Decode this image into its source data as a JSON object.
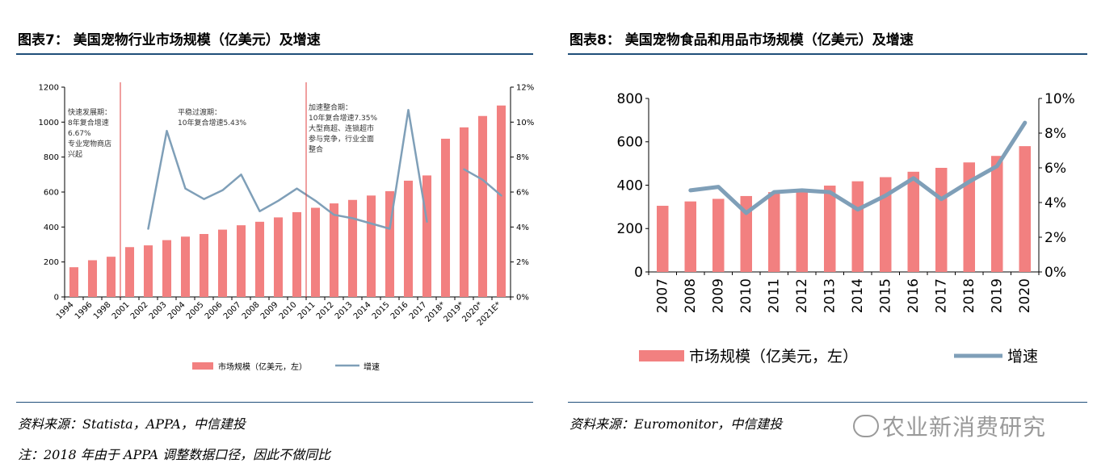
{
  "left": {
    "title": "图表7： 美国宠物行业市场规模（亿美元）及增速",
    "source": "资料来源：Statista，APPA，中信建投",
    "note": "注：2018 年由于 APPA 调整数据口径，因此不做同比"
  },
  "right": {
    "title": "图表8： 美国宠物食品和用品市场规模（亿美元）及增速",
    "source": "资料来源：Euromonitor，中信建投"
  },
  "watermark": "农业新消费研究",
  "colors": {
    "bar": "#f28080",
    "line": "#7f9fb8",
    "rule": "#1f4e79"
  },
  "chart_data": [
    {
      "type": "bar",
      "categories": [
        "1994",
        "1996",
        "1998",
        "2001",
        "2002",
        "2003",
        "2004",
        "2005",
        "2006",
        "2007",
        "2008",
        "2009",
        "2010",
        "2011",
        "2012",
        "2013",
        "2014",
        "2015",
        "2016",
        "2017",
        "2018*",
        "2019*",
        "2020*",
        "2021E*"
      ],
      "series": [
        {
          "name": "市场规模（亿美元，左）",
          "type": "bar",
          "axis": "left",
          "values": [
            170,
            210,
            230,
            285,
            295,
            325,
            345,
            360,
            385,
            410,
            430,
            455,
            485,
            510,
            535,
            555,
            580,
            605,
            665,
            695,
            905,
            970,
            1035,
            1095
          ]
        },
        {
          "name": "增速",
          "type": "line",
          "axis": "right",
          "values": [
            null,
            null,
            null,
            null,
            3.9,
            9.5,
            6.2,
            5.6,
            6.1,
            7.0,
            4.9,
            5.5,
            6.2,
            5.5,
            4.7,
            4.5,
            4.2,
            3.9,
            10.7,
            4.3,
            null,
            7.3,
            6.7,
            5.8
          ]
        }
      ],
      "ylim": [
        0,
        1200
      ],
      "yticks": [
        "0",
        "200",
        "400",
        "600",
        "800",
        "1000",
        "1200"
      ],
      "y2lim": [
        0,
        12
      ],
      "y2ticks": [
        "0%",
        "2%",
        "4%",
        "6%",
        "8%",
        "10%",
        "12%"
      ],
      "annotations": [
        {
          "lines": [
            "快速发展期：",
            "8年复合增速",
            "6.67%",
            "专业宠物商店",
            "兴起"
          ]
        },
        {
          "lines": [
            "平稳过渡期：",
            "10年复合增速5.43%"
          ]
        },
        {
          "lines": [
            "加速整合期：",
            "10年复合增速7.35%",
            "大型商超、连锁超市",
            "参与竞争，行业全面",
            "整合"
          ]
        }
      ],
      "dividers_after": [
        "1998",
        "2010"
      ],
      "legend": {
        "position": "bottom",
        "bar": "市场规模（亿美元，左）",
        "line": "增速"
      }
    },
    {
      "type": "bar",
      "categories": [
        "2007",
        "2008",
        "2009",
        "2010",
        "2011",
        "2012",
        "2013",
        "2014",
        "2015",
        "2016",
        "2017",
        "2018",
        "2019",
        "2020"
      ],
      "series": [
        {
          "name": "市场规模（亿美元，左）",
          "type": "bar",
          "axis": "left",
          "values": [
            305,
            325,
            337,
            350,
            368,
            382,
            398,
            418,
            437,
            462,
            480,
            505,
            535,
            580
          ]
        },
        {
          "name": "增速",
          "type": "line",
          "axis": "right",
          "values": [
            null,
            4.7,
            4.9,
            3.4,
            4.6,
            4.7,
            4.6,
            3.6,
            4.4,
            5.4,
            4.2,
            5.2,
            6.1,
            8.6
          ]
        }
      ],
      "ylim": [
        0,
        800
      ],
      "yticks": [
        "0",
        "200",
        "400",
        "600",
        "800"
      ],
      "y2lim": [
        0,
        10
      ],
      "y2ticks": [
        "0%",
        "2%",
        "4%",
        "6%",
        "8%",
        "10%"
      ],
      "legend": {
        "position": "bottom",
        "bar": "市场规模（亿美元，左）",
        "line": "增速"
      }
    }
  ]
}
